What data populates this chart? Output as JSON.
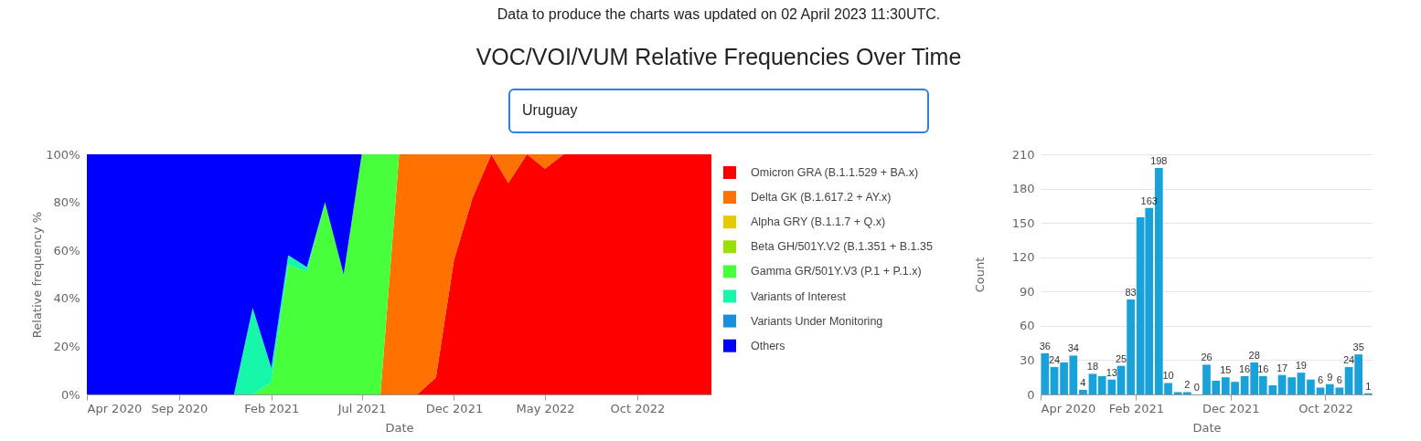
{
  "chart_data": [
    {
      "type": "area",
      "title": "VOC/VOI/VUM Relative Frequencies Over Time",
      "subtitle": "Uruguay",
      "annotations": [
        "Data to produce the charts was updated on 02 April 2023 11:30UTC."
      ],
      "xlabel": "Date",
      "ylabel": "Relative frequency %",
      "stacked": true,
      "legend": "right",
      "x": [
        "2020-04",
        "2020-05",
        "2020-06",
        "2020-07",
        "2020-08",
        "2020-09",
        "2020-10",
        "2020-11",
        "2020-12",
        "2021-01",
        "2021-02",
        "2021-03",
        "2021-04",
        "2021-05",
        "2021-06",
        "2021-07",
        "2021-08",
        "2021-09",
        "2021-10",
        "2021-11",
        "2021-12",
        "2022-01",
        "2022-02",
        "2022-03",
        "2022-04",
        "2022-05",
        "2022-06",
        "2022-07",
        "2022-08",
        "2022-09",
        "2022-10",
        "2022-11",
        "2022-12",
        "2023-01",
        "2023-02"
      ],
      "series": [
        {
          "name": "Omicron GRA (B.1.1.529 + BA.x)",
          "color": "#ff0000",
          "values": [
            null,
            null,
            null,
            null,
            null,
            null,
            null,
            null,
            null,
            null,
            null,
            null,
            null,
            null,
            null,
            null,
            null,
            null,
            0,
            7,
            56,
            82,
            100,
            88,
            100,
            94,
            100,
            100,
            100,
            100,
            100,
            100,
            100,
            100,
            100
          ]
        },
        {
          "name": "Delta GK (B.1.617.2 + AY.x)",
          "color": "#ff7100",
          "values": [
            null,
            null,
            null,
            null,
            null,
            null,
            null,
            null,
            null,
            null,
            null,
            null,
            null,
            null,
            null,
            null,
            0,
            100,
            100,
            93,
            44,
            18,
            0,
            12,
            0,
            6,
            0,
            null,
            null,
            null,
            null,
            null,
            null,
            null,
            null
          ]
        },
        {
          "name": "Alpha GRY (B.1.1.7 + Q.x)",
          "color": "#e6c900",
          "values": [
            null,
            null,
            null,
            null,
            null,
            null,
            null,
            null,
            null,
            null,
            null,
            null,
            null,
            null,
            null,
            null,
            null,
            null,
            null,
            null,
            null,
            null,
            null,
            null,
            null,
            null,
            null,
            null,
            null,
            null,
            null,
            null,
            null,
            null,
            null
          ]
        },
        {
          "name": "Beta GH/501Y.V2 (B.1.351 + B.1.35",
          "color": "#99e000",
          "values": [
            null,
            null,
            null,
            null,
            null,
            null,
            null,
            null,
            null,
            null,
            null,
            null,
            null,
            null,
            null,
            null,
            null,
            null,
            null,
            null,
            null,
            null,
            null,
            null,
            null,
            null,
            null,
            null,
            null,
            null,
            null,
            null,
            null,
            null,
            null
          ]
        },
        {
          "name": "Gamma GR/501Y.V3 (P.1 + P.1.x)",
          "color": "#48ff3c",
          "values": [
            null,
            null,
            null,
            null,
            null,
            null,
            null,
            null,
            null,
            0,
            5,
            54,
            51,
            80,
            50,
            100,
            100,
            0,
            null,
            null,
            null,
            null,
            null,
            null,
            null,
            null,
            null,
            null,
            null,
            null,
            null,
            null,
            null,
            null,
            null
          ]
        },
        {
          "name": "Variants of Interest",
          "color": "#17f7aa",
          "values": [
            null,
            null,
            null,
            null,
            null,
            null,
            null,
            null,
            0,
            36,
            6,
            4,
            2,
            0,
            null,
            null,
            null,
            null,
            null,
            null,
            null,
            null,
            null,
            null,
            null,
            null,
            null,
            null,
            null,
            null,
            null,
            null,
            null,
            null,
            null
          ]
        },
        {
          "name": "Variants Under Monitoring",
          "color": "#1a8fdb",
          "values": [
            null,
            null,
            null,
            null,
            null,
            null,
            null,
            null,
            null,
            null,
            null,
            null,
            null,
            null,
            null,
            null,
            null,
            null,
            null,
            null,
            null,
            null,
            null,
            null,
            null,
            null,
            null,
            null,
            null,
            null,
            null,
            null,
            null,
            null,
            null
          ]
        },
        {
          "name": "Others",
          "color": "#0000ff",
          "values": [
            100,
            100,
            100,
            100,
            100,
            100,
            100,
            100,
            100,
            64,
            89,
            42,
            47,
            20,
            50,
            0,
            null,
            null,
            null,
            null,
            null,
            null,
            null,
            null,
            null,
            null,
            null,
            null,
            null,
            null,
            null,
            null,
            null,
            null,
            null
          ]
        }
      ],
      "xlim": [
        "2020-04",
        "2023-02"
      ],
      "xticks": [
        {
          "value": "2020-04",
          "label": "Apr 2020"
        },
        {
          "value": "2020-09",
          "label": "Sep 2020"
        },
        {
          "value": "2021-02",
          "label": "Feb 2021"
        },
        {
          "value": "2021-07",
          "label": "Jul 2021"
        },
        {
          "value": "2021-12",
          "label": "Dec 2021"
        },
        {
          "value": "2022-05",
          "label": "May 2022"
        },
        {
          "value": "2022-10",
          "label": "Oct 2022"
        }
      ],
      "ylim": [
        0,
        100
      ],
      "yticks": [
        {
          "value": 0,
          "label": "0%"
        },
        {
          "value": 20,
          "label": "20%"
        },
        {
          "value": 40,
          "label": "40%"
        },
        {
          "value": 60,
          "label": "60%"
        },
        {
          "value": 80,
          "label": "80%"
        },
        {
          "value": 100,
          "label": "100%"
        }
      ]
    },
    {
      "type": "bar",
      "xlabel": "Date",
      "ylabel": "Count",
      "color": "#19a1da",
      "grid": "y",
      "x": [
        "2020-04-15",
        "2020-05-15",
        "2020-06-15",
        "2020-07-15",
        "2020-08-15",
        "2020-09-15",
        "2020-10-15",
        "2020-11-15",
        "2020-12-15",
        "2021-01-15",
        "2021-02-15",
        "2021-03-15",
        "2021-04-15",
        "2021-05-15",
        "2021-06-15",
        "2021-07-15",
        "2021-08-15",
        "2021-09-15",
        "2021-10-15",
        "2021-11-15",
        "2021-12-15",
        "2022-01-15",
        "2022-02-15",
        "2022-03-15",
        "2022-04-15",
        "2022-05-15",
        "2022-06-15",
        "2022-07-15",
        "2022-08-15",
        "2022-09-15",
        "2022-10-15",
        "2022-11-15",
        "2022-12-15",
        "2023-01-15",
        "2023-02-15"
      ],
      "values": [
        36,
        24,
        28,
        34,
        4,
        18,
        16,
        13,
        25,
        83,
        155,
        163,
        198,
        10,
        2,
        2,
        0,
        26,
        12,
        15,
        11,
        16,
        28,
        16,
        8,
        17,
        15,
        19,
        13,
        6,
        9,
        6,
        24,
        35,
        1
      ],
      "value_labels": [
        "36",
        "24",
        null,
        "34",
        "4",
        "18",
        null,
        "13",
        "25",
        "83",
        null,
        "163",
        "198",
        "10",
        null,
        "2",
        "0",
        "26",
        null,
        "15",
        null,
        "16",
        "28",
        "16",
        null,
        "17",
        null,
        "19",
        null,
        "6",
        "9",
        "6",
        "24",
        "35",
        "1"
      ],
      "xlim": [
        "2020-04",
        "2023-03"
      ],
      "xticks": [
        {
          "value": "2020-04",
          "label": "Apr 2020"
        },
        {
          "value": "2021-02",
          "label": "Feb 2021"
        },
        {
          "value": "2021-12",
          "label": "Dec 2021"
        },
        {
          "value": "2022-10",
          "label": "Oct 2022"
        }
      ],
      "ylim": [
        0,
        210
      ],
      "yticks": [
        0,
        30,
        60,
        90,
        120,
        150,
        180,
        210
      ]
    }
  ]
}
